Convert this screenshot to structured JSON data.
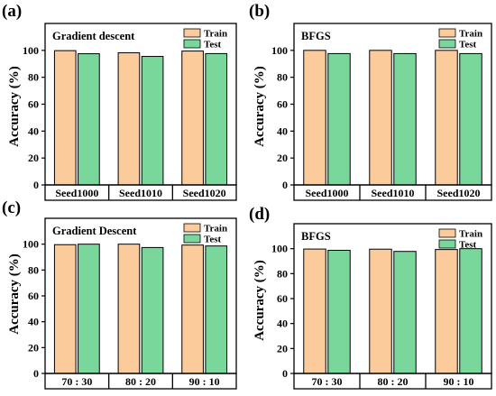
{
  "colors": {
    "train": "#FCCB9B",
    "test": "#79D79B",
    "axis": "#000000"
  },
  "chart_data": [
    {
      "type": "bar",
      "panel_label": "(a)",
      "title": "Gradient descent",
      "ylabel": "Accuracy (%)",
      "xlabel": "",
      "categories": [
        "Seed1000",
        "Seed1010",
        "Seed1020"
      ],
      "series": [
        {
          "name": "Train",
          "values": [
            99.8,
            98.2,
            99.5
          ]
        },
        {
          "name": "Test",
          "values": [
            97.5,
            95.5,
            97.6
          ]
        }
      ],
      "ylim": [
        0,
        120
      ],
      "yticks": [
        0,
        20,
        40,
        60,
        80,
        100
      ],
      "legend": "top-right",
      "grid": false
    },
    {
      "type": "bar",
      "panel_label": "(b)",
      "title": "BFGS",
      "ylabel": "Accuracy (%)",
      "xlabel": "",
      "categories": [
        "Seed1000",
        "Seed1010",
        "Seed1020"
      ],
      "series": [
        {
          "name": "Train",
          "values": [
            100,
            100,
            100
          ]
        },
        {
          "name": "Test",
          "values": [
            97.6,
            97.6,
            97.6
          ]
        }
      ],
      "ylim": [
        0,
        120
      ],
      "yticks": [
        0,
        20,
        40,
        60,
        80,
        100
      ],
      "legend": "top-right",
      "grid": false
    },
    {
      "type": "bar",
      "panel_label": "(c)",
      "title": "Gradient Descent",
      "ylabel": "Accuracy (%)",
      "xlabel": "",
      "categories": [
        "70 : 30",
        "80 : 20",
        "90 : 10"
      ],
      "series": [
        {
          "name": "Train",
          "values": [
            99.6,
            100,
            99.3
          ]
        },
        {
          "name": "Test",
          "values": [
            100,
            97.4,
            98.6
          ]
        }
      ],
      "ylim": [
        0,
        120
      ],
      "yticks": [
        0,
        20,
        40,
        60,
        80,
        100
      ],
      "legend": "top-right",
      "grid": false
    },
    {
      "type": "bar",
      "panel_label": "(d)",
      "title": "BFGS",
      "ylabel": "Accuracy (%)",
      "xlabel": "",
      "categories": [
        "70 : 30",
        "80 : 20",
        "90 : 10"
      ],
      "series": [
        {
          "name": "Train",
          "values": [
            99.7,
            99.6,
            99.3
          ]
        },
        {
          "name": "Test",
          "values": [
            98.7,
            97.8,
            100
          ]
        }
      ],
      "ylim": [
        0,
        120
      ],
      "yticks": [
        0,
        20,
        40,
        60,
        80,
        100
      ],
      "legend": "top-right",
      "grid": false
    }
  ]
}
